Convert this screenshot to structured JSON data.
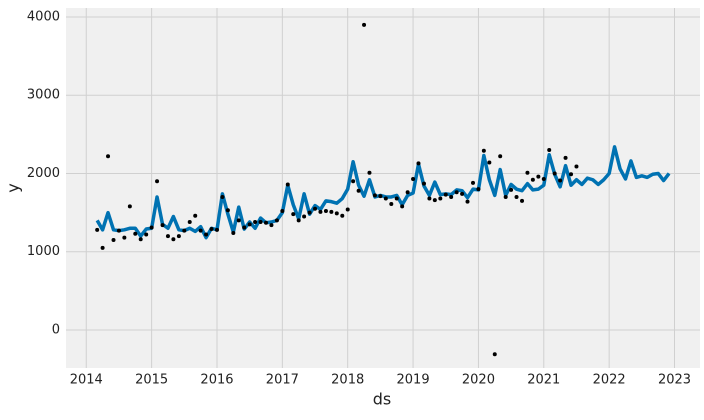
{
  "chart_data": {
    "type": "line",
    "xlabel": "ds",
    "ylabel": "y",
    "xlim": [
      2013.69,
      2023.39
    ],
    "ylim": [
      -486,
      4115
    ],
    "xticks": [
      2014,
      2015,
      2016,
      2017,
      2018,
      2019,
      2020,
      2021,
      2022,
      2023
    ],
    "yticks": [
      0,
      1000,
      2000,
      3000,
      4000
    ],
    "grid": true,
    "series": [
      {
        "mode": "lines",
        "color": "#0072b2",
        "x": [
          2014.167,
          2014.25,
          2014.333,
          2014.417,
          2014.5,
          2014.583,
          2014.667,
          2014.75,
          2014.833,
          2014.917,
          2015,
          2015.083,
          2015.167,
          2015.25,
          2015.333,
          2015.417,
          2015.5,
          2015.583,
          2015.667,
          2015.75,
          2015.833,
          2015.917,
          2016,
          2016.083,
          2016.167,
          2016.25,
          2016.333,
          2016.417,
          2016.5,
          2016.583,
          2016.667,
          2016.75,
          2016.833,
          2016.917,
          2017,
          2017.083,
          2017.167,
          2017.25,
          2017.333,
          2017.417,
          2017.5,
          2017.583,
          2017.667,
          2017.75,
          2017.833,
          2017.917,
          2018,
          2018.083,
          2018.167,
          2018.25,
          2018.333,
          2018.417,
          2018.5,
          2018.583,
          2018.667,
          2018.75,
          2018.833,
          2018.917,
          2019,
          2019.083,
          2019.167,
          2019.25,
          2019.333,
          2019.417,
          2019.5,
          2019.583,
          2019.667,
          2019.75,
          2019.833,
          2019.917,
          2020,
          2020.083,
          2020.167,
          2020.25,
          2020.333,
          2020.417,
          2020.5,
          2020.583,
          2020.667,
          2020.75,
          2020.833,
          2020.917,
          2021,
          2021.083,
          2021.167,
          2021.25,
          2021.333,
          2021.417,
          2021.5,
          2021.583,
          2021.667,
          2021.75,
          2021.833,
          2021.917,
          2022,
          2022.083,
          2022.167,
          2022.25,
          2022.333,
          2022.417,
          2022.5,
          2022.583,
          2022.667,
          2022.75,
          2022.833,
          2022.917
        ],
        "values": [
          1400,
          1280,
          1500,
          1280,
          1270,
          1280,
          1300,
          1300,
          1200,
          1290,
          1300,
          1700,
          1350,
          1300,
          1450,
          1280,
          1270,
          1300,
          1260,
          1320,
          1180,
          1300,
          1280,
          1740,
          1480,
          1250,
          1570,
          1290,
          1380,
          1300,
          1430,
          1370,
          1380,
          1400,
          1500,
          1850,
          1600,
          1420,
          1740,
          1480,
          1590,
          1540,
          1650,
          1640,
          1620,
          1680,
          1800,
          2150,
          1850,
          1710,
          1920,
          1700,
          1720,
          1700,
          1700,
          1720,
          1600,
          1720,
          1750,
          2120,
          1840,
          1720,
          1890,
          1730,
          1740,
          1730,
          1790,
          1780,
          1690,
          1800,
          1790,
          2230,
          1920,
          1720,
          2050,
          1720,
          1860,
          1800,
          1780,
          1870,
          1790,
          1800,
          1850,
          2240,
          1990,
          1830,
          2100,
          1850,
          1920,
          1860,
          1940,
          1920,
          1860,
          1920,
          2000,
          2340,
          2060,
          1930,
          2160,
          1950,
          1970,
          1950,
          1990,
          2000,
          1910,
          2000
        ]
      },
      {
        "mode": "markers",
        "color": "#000000",
        "x": [
          2014.167,
          2014.25,
          2014.333,
          2014.417,
          2014.5,
          2014.583,
          2014.667,
          2014.75,
          2014.833,
          2014.917,
          2015,
          2015.083,
          2015.167,
          2015.25,
          2015.333,
          2015.417,
          2015.5,
          2015.583,
          2015.667,
          2015.75,
          2015.833,
          2015.917,
          2016,
          2016.083,
          2016.167,
          2016.25,
          2016.333,
          2016.417,
          2016.5,
          2016.583,
          2016.667,
          2016.75,
          2016.833,
          2016.917,
          2017,
          2017.083,
          2017.167,
          2017.25,
          2017.333,
          2017.417,
          2017.5,
          2017.583,
          2017.667,
          2017.75,
          2017.833,
          2017.917,
          2018,
          2018.083,
          2018.167,
          2018.25,
          2018.333,
          2018.417,
          2018.5,
          2018.583,
          2018.667,
          2018.75,
          2018.833,
          2018.917,
          2019,
          2019.083,
          2019.167,
          2019.25,
          2019.333,
          2019.417,
          2019.5,
          2019.583,
          2019.667,
          2019.75,
          2019.833,
          2019.917,
          2020,
          2020.083,
          2020.167,
          2020.25,
          2020.333,
          2020.417,
          2020.5,
          2020.583,
          2020.667,
          2020.75,
          2020.833,
          2020.917,
          2021,
          2021.083,
          2021.167,
          2021.25,
          2021.333,
          2021.417,
          2021.5
        ],
        "values": [
          1280,
          1050,
          2220,
          1150,
          1270,
          1180,
          1580,
          1230,
          1160,
          1220,
          1310,
          1900,
          1340,
          1200,
          1160,
          1200,
          1270,
          1380,
          1460,
          1270,
          1220,
          1290,
          1280,
          1700,
          1530,
          1240,
          1400,
          1310,
          1350,
          1380,
          1380,
          1370,
          1340,
          1400,
          1520,
          1860,
          1480,
          1400,
          1450,
          1500,
          1550,
          1510,
          1520,
          1510,
          1490,
          1460,
          1540,
          1900,
          1780,
          3900,
          2010,
          1720,
          1710,
          1680,
          1610,
          1680,
          1580,
          1760,
          1930,
          2130,
          1870,
          1680,
          1660,
          1680,
          1730,
          1700,
          1760,
          1740,
          1640,
          1880,
          1800,
          2290,
          2140,
          -310,
          2220,
          1700,
          1790,
          1700,
          1650,
          2010,
          1920,
          1960,
          1930,
          2300,
          2000,
          1910,
          2200,
          1990,
          2090
        ]
      }
    ]
  }
}
